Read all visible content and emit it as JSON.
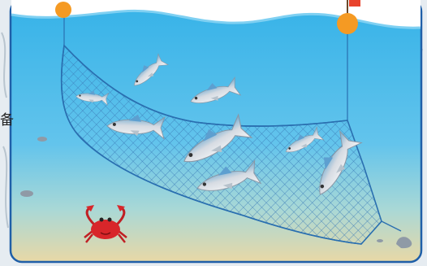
{
  "illustration": {
    "subject": "fishing-net-underwater",
    "colors": {
      "water_top": "#3cb6ea",
      "water_mid": "#6cc8ee",
      "water_bottom": "#e5d7a8",
      "net": "#2a6fb0",
      "float": "#f59a23",
      "flag": "#e8432c",
      "frame": "#1f5fa8",
      "crab": "#d8262a",
      "fish_body": "#c6cdd6",
      "fish_back": "#5aa9d8"
    },
    "counts": {
      "fish": 8,
      "crab": 1,
      "floats": 2,
      "rocks": 4
    }
  },
  "edge_text": "备"
}
